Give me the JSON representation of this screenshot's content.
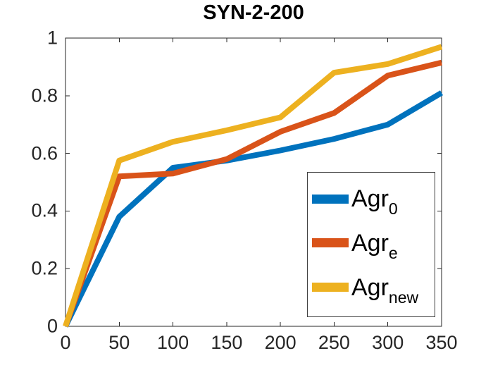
{
  "chart_data": {
    "type": "line",
    "title": "SYN-2-200",
    "xlabel": "",
    "ylabel": "",
    "xlim": [
      0,
      350
    ],
    "ylim": [
      0,
      1
    ],
    "grid": false,
    "legend_position": "lower-right-inside",
    "axis_color": "#262626",
    "tick_label_color": "#262626",
    "x_ticks": [
      0,
      50,
      100,
      150,
      200,
      250,
      300,
      350
    ],
    "x_tick_labels": [
      "0",
      "50",
      "100",
      "150",
      "200",
      "250",
      "300",
      "350"
    ],
    "y_ticks": [
      0,
      0.2,
      0.4,
      0.6,
      0.8,
      1
    ],
    "y_tick_labels": [
      "0",
      "0.2",
      "0.4",
      "0.6",
      "0.8",
      "1"
    ],
    "x": [
      0,
      50,
      100,
      150,
      200,
      250,
      300,
      350
    ],
    "series": [
      {
        "name": "Agr_0",
        "label_base": "Agr",
        "label_sub": "0",
        "color": "#0072BD",
        "values": [
          0,
          0.38,
          0.55,
          0.575,
          0.61,
          0.65,
          0.7,
          0.81
        ]
      },
      {
        "name": "Agr_e",
        "label_base": "Agr",
        "label_sub": "e",
        "color": "#D95319",
        "values": [
          0,
          0.52,
          0.53,
          0.58,
          0.675,
          0.74,
          0.87,
          0.915
        ]
      },
      {
        "name": "Agr_new",
        "label_base": "Agr",
        "label_sub": "new",
        "color": "#EDB120",
        "values": [
          0,
          0.575,
          0.64,
          0.68,
          0.725,
          0.88,
          0.91,
          0.97
        ]
      }
    ]
  }
}
